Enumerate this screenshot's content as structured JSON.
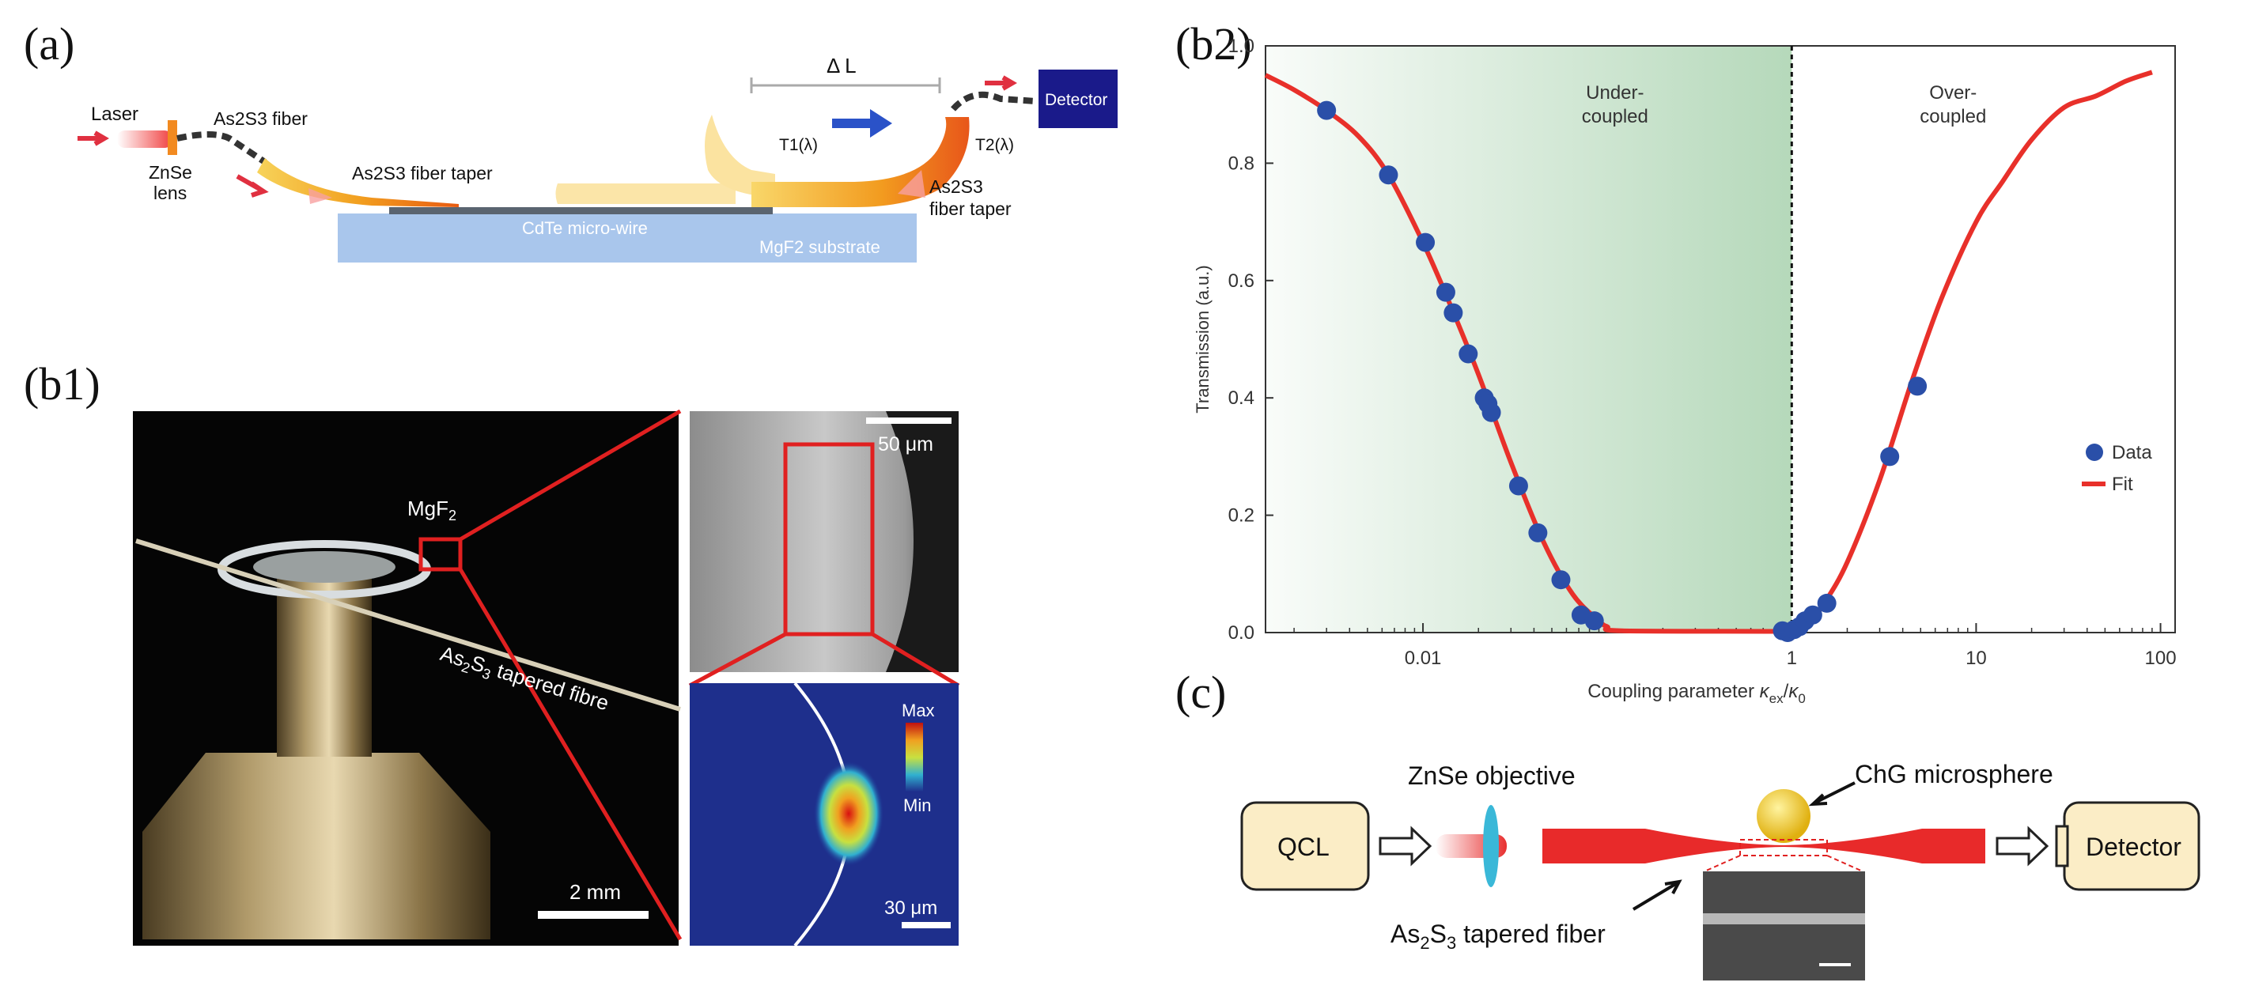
{
  "panels": {
    "a": "(a)",
    "b1": "(b1)",
    "b2": "(b2)",
    "c": "(c)"
  },
  "panel_a": {
    "laser": "Laser",
    "fiber": "As2S3 fiber",
    "lens_top": "ZnSe",
    "lens_bottom": "lens",
    "taper_left": "As2S3 fiber taper",
    "delta_l": "Δ L",
    "t1": "T1(λ)",
    "t2": "T2(λ)",
    "detector": "Detector",
    "taper_right_1": "As2S3",
    "taper_right_2": "fiber taper",
    "wire": "CdTe micro-wire",
    "substrate": "MgF2 substrate"
  },
  "panel_b1": {
    "mgf2": "MgF",
    "mgf2_sub": "2",
    "fibre_pre": "As",
    "fibre_s1": "2",
    "fibre_mid": "S",
    "fibre_s2": "3",
    "fibre_post": " tapered fibre",
    "scale_main": "2 mm",
    "scale_sem": "50 μm",
    "scale_sim": "30 μm",
    "cb_max": "Max",
    "cb_min": "Min"
  },
  "panel_c": {
    "qcl": "QCL",
    "objective": "ZnSe objective",
    "microsphere": "ChG microsphere",
    "detector": "Detector",
    "fiber_pre": "As",
    "fiber_s1": "2",
    "fiber_mid": "S",
    "fiber_s2": "3",
    "fiber_post": " tapered fiber"
  },
  "chart_data": {
    "type": "scatter",
    "title": "",
    "xlabel_prefix": "Coupling parameter ",
    "xlabel_k1": "κ",
    "xlabel_sub1": "ex",
    "xlabel_slash": "/",
    "xlabel_k2": "κ",
    "xlabel_sub2": "0",
    "ylabel": "Transmission (a.u.)",
    "xscale": "log",
    "xlim": [
      0.0014,
      120
    ],
    "ylim": [
      0,
      1.0
    ],
    "x_ticks": [
      0.01,
      1,
      10,
      100
    ],
    "x_tick_labels": [
      "0.01",
      "1",
      "10",
      "100"
    ],
    "y_ticks": [
      0,
      0.2,
      0.4,
      0.6,
      0.8,
      1.0
    ],
    "y_tick_labels": [
      "0.0",
      "0.2",
      "0.4",
      "0.6",
      "0.8",
      "1.0"
    ],
    "regions": [
      {
        "label_line1": "Under-",
        "label_line2": "coupled",
        "x_from": 0.0014,
        "x_to": 1
      },
      {
        "label_line1": "Over-",
        "label_line2": "coupled",
        "x_from": 1,
        "x_to": 120
      }
    ],
    "critical_line_x": 1,
    "legend": {
      "position": "right",
      "data_label": "Data",
      "fit_label": "Fit"
    },
    "colors": {
      "data": "#2a4fa8",
      "fit": "#e8302a",
      "shade": "#3d9a4a",
      "critical": "#111111"
    },
    "series": [
      {
        "name": "Data",
        "kind": "points",
        "x": [
          0.003,
          0.0065,
          0.0103,
          0.0133,
          0.0146,
          0.0176,
          0.0215,
          0.0225,
          0.0235,
          0.033,
          0.042,
          0.056,
          0.072,
          0.085,
          0.89,
          0.95,
          1.03,
          1.1,
          1.18,
          1.3,
          1.55,
          3.4,
          4.8
        ],
        "y": [
          0.89,
          0.78,
          0.665,
          0.58,
          0.545,
          0.475,
          0.4,
          0.39,
          0.375,
          0.25,
          0.17,
          0.09,
          0.03,
          0.02,
          0.003,
          0.0,
          0.005,
          0.01,
          0.02,
          0.03,
          0.05,
          0.3,
          0.42
        ]
      },
      {
        "name": "Fit",
        "kind": "line",
        "x": [
          0.0014,
          0.002,
          0.003,
          0.0045,
          0.0065,
          0.01,
          0.014,
          0.02,
          0.03,
          0.045,
          0.065,
          0.09,
          0.1,
          0.12,
          0.85,
          1,
          1.2,
          1.5,
          2,
          3,
          4.5,
          6.5,
          10,
          14,
          20,
          30,
          45,
          65,
          90
        ],
        "y": [
          0.95,
          0.925,
          0.89,
          0.845,
          0.78,
          0.665,
          0.56,
          0.44,
          0.29,
          0.155,
          0.065,
          0.02,
          0.01,
          0.003,
          0.002,
          0.0,
          0.01,
          0.05,
          0.12,
          0.26,
          0.43,
          0.57,
          0.7,
          0.77,
          0.84,
          0.895,
          0.915,
          0.94,
          0.955
        ]
      }
    ]
  }
}
